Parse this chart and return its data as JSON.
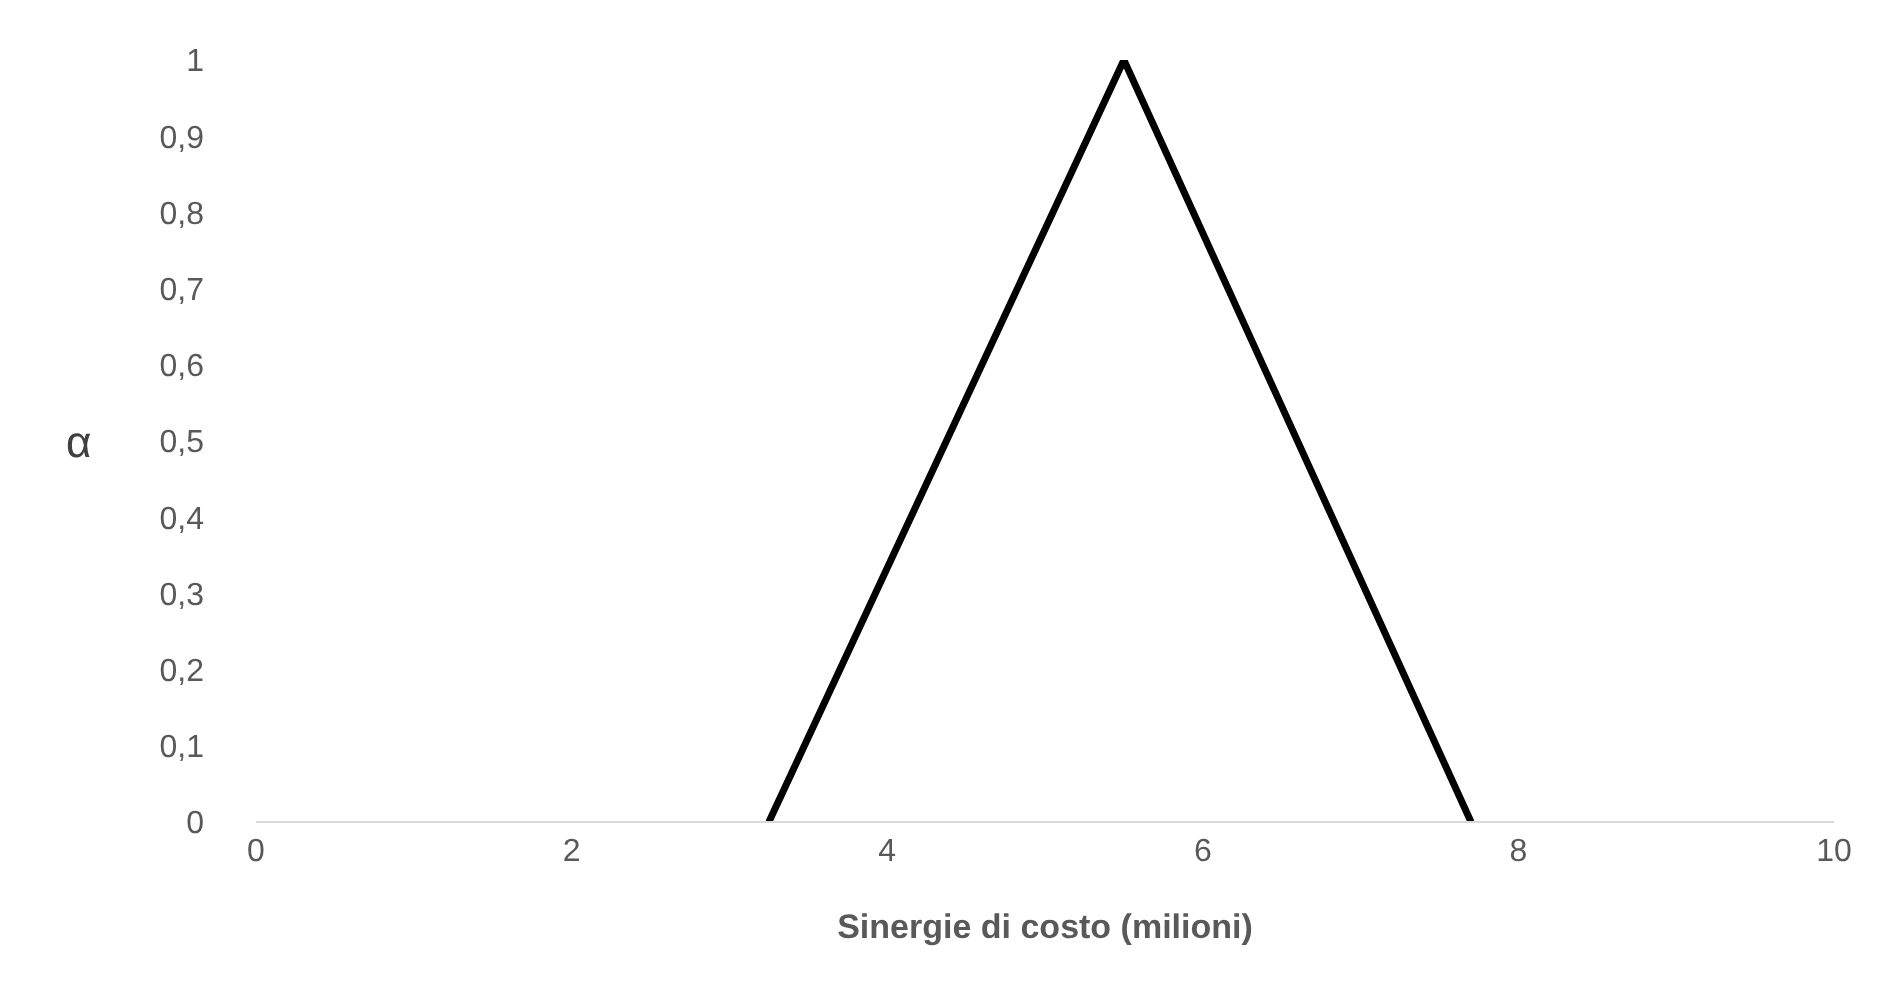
{
  "chart_data": {
    "type": "line",
    "xlabel": "Sinergie di costo (milioni)",
    "ylabel": "α",
    "series": [
      {
        "color": "#000000",
        "x": [
          3.25,
          5.5,
          7.7
        ],
        "values": [
          0,
          1,
          0
        ]
      }
    ],
    "xlim": [
      0,
      10
    ],
    "xticks": [
      0,
      2,
      4,
      6,
      8,
      10
    ],
    "ylim": [
      0,
      1
    ],
    "yticks": [
      {
        "value": 0,
        "label": "0"
      },
      {
        "value": 0.1,
        "label": "0,1"
      },
      {
        "value": 0.2,
        "label": "0,2"
      },
      {
        "value": 0.3,
        "label": "0,3"
      },
      {
        "value": 0.4,
        "label": "0,4"
      },
      {
        "value": 0.5,
        "label": "0,5"
      },
      {
        "value": 0.6,
        "label": "0,6"
      },
      {
        "value": 0.7,
        "label": "0,7"
      },
      {
        "value": 0.8,
        "label": "0,8"
      },
      {
        "value": 0.9,
        "label": "0,9"
      },
      {
        "value": 1,
        "label": "1"
      }
    ],
    "grid": false,
    "legend": false,
    "marker": "none",
    "line_style": "solid"
  }
}
